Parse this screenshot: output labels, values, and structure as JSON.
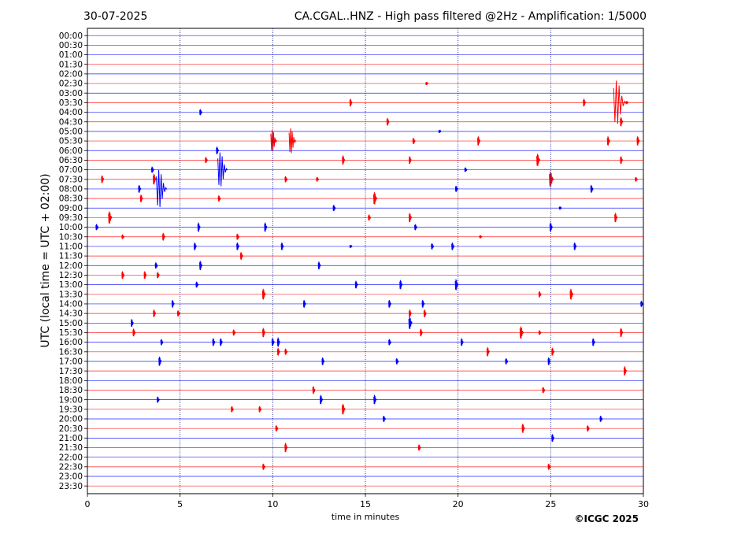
{
  "header": {
    "date": "30-07-2025",
    "title": "CA.CGAL..HNZ - High pass filtered @2Hz - Amplification: 1/5000"
  },
  "footer": {
    "copyright": "©ICGC 2025"
  },
  "chart_data": {
    "type": "line",
    "xlabel": "time in minutes",
    "ylabel": "UTC (local time = UTC + 02:00)",
    "xlim": [
      0,
      30
    ],
    "x_ticks": [
      0,
      5,
      10,
      15,
      20,
      25,
      30
    ],
    "grid": "vertical dotted at every 5 minutes",
    "colors": {
      "odd_trace": "#ff0000",
      "even_trace": "#0000ff",
      "grid": "#000080"
    },
    "rows": [
      "00:00",
      "00:30",
      "01:00",
      "01:30",
      "02:00",
      "02:30",
      "03:00",
      "03:30",
      "04:00",
      "04:30",
      "05:00",
      "05:30",
      "06:00",
      "06:30",
      "07:00",
      "07:30",
      "08:00",
      "08:30",
      "09:00",
      "09:30",
      "10:00",
      "10:30",
      "11:00",
      "11:30",
      "12:00",
      "12:30",
      "13:00",
      "13:30",
      "14:00",
      "14:30",
      "15:00",
      "15:30",
      "16:00",
      "16:30",
      "17:00",
      "17:30",
      "18:00",
      "18:30",
      "19:00",
      "19:30",
      "20:00",
      "20:30",
      "21:00",
      "21:30",
      "22:00",
      "22:30",
      "23:00",
      "23:30"
    ],
    "events": [
      {
        "row": 5,
        "t": 18.3,
        "amp": 2
      },
      {
        "row": 7,
        "t": 14.2,
        "amp": 5
      },
      {
        "row": 7,
        "t": 26.8,
        "amp": 5
      },
      {
        "row": 7,
        "t": 28.6,
        "amp": 28
      },
      {
        "row": 7,
        "t": 29.1,
        "amp": 2
      },
      {
        "row": 8,
        "t": 6.1,
        "amp": 4
      },
      {
        "row": 9,
        "t": 16.2,
        "amp": 5
      },
      {
        "row": 9,
        "t": 28.8,
        "amp": 6
      },
      {
        "row": 10,
        "t": 19.0,
        "amp": 2
      },
      {
        "row": 11,
        "t": 10.0,
        "amp": 14
      },
      {
        "row": 11,
        "t": 11.0,
        "amp": 16
      },
      {
        "row": 11,
        "t": 17.6,
        "amp": 4
      },
      {
        "row": 11,
        "t": 21.1,
        "amp": 6
      },
      {
        "row": 11,
        "t": 28.1,
        "amp": 6
      },
      {
        "row": 11,
        "t": 29.7,
        "amp": 6
      },
      {
        "row": 12,
        "t": 7.0,
        "amp": 5
      },
      {
        "row": 13,
        "t": 6.4,
        "amp": 4
      },
      {
        "row": 13,
        "t": 13.8,
        "amp": 6
      },
      {
        "row": 13,
        "t": 17.4,
        "amp": 5
      },
      {
        "row": 13,
        "t": 24.3,
        "amp": 8
      },
      {
        "row": 13,
        "t": 28.8,
        "amp": 5
      },
      {
        "row": 14,
        "t": 3.5,
        "amp": 4
      },
      {
        "row": 14,
        "t": 7.2,
        "amp": 22
      },
      {
        "row": 14,
        "t": 20.4,
        "amp": 3
      },
      {
        "row": 15,
        "t": 0.8,
        "amp": 5
      },
      {
        "row": 15,
        "t": 3.6,
        "amp": 7
      },
      {
        "row": 15,
        "t": 10.7,
        "amp": 4
      },
      {
        "row": 15,
        "t": 12.4,
        "amp": 3
      },
      {
        "row": 15,
        "t": 25.0,
        "amp": 10
      },
      {
        "row": 15,
        "t": 29.6,
        "amp": 3
      },
      {
        "row": 16,
        "t": 2.8,
        "amp": 5
      },
      {
        "row": 16,
        "t": 3.9,
        "amp": 24
      },
      {
        "row": 16,
        "t": 19.9,
        "amp": 4
      },
      {
        "row": 16,
        "t": 27.2,
        "amp": 5
      },
      {
        "row": 17,
        "t": 2.9,
        "amp": 5
      },
      {
        "row": 17,
        "t": 7.1,
        "amp": 4
      },
      {
        "row": 17,
        "t": 15.5,
        "amp": 8
      },
      {
        "row": 18,
        "t": 13.3,
        "amp": 4
      },
      {
        "row": 18,
        "t": 25.5,
        "amp": 2
      },
      {
        "row": 19,
        "t": 1.2,
        "amp": 8
      },
      {
        "row": 19,
        "t": 15.2,
        "amp": 4
      },
      {
        "row": 19,
        "t": 17.4,
        "amp": 6
      },
      {
        "row": 19,
        "t": 28.5,
        "amp": 6
      },
      {
        "row": 20,
        "t": 0.5,
        "amp": 4
      },
      {
        "row": 20,
        "t": 6.0,
        "amp": 6
      },
      {
        "row": 20,
        "t": 9.6,
        "amp": 6
      },
      {
        "row": 20,
        "t": 17.7,
        "amp": 4
      },
      {
        "row": 20,
        "t": 25.0,
        "amp": 6
      },
      {
        "row": 21,
        "t": 1.9,
        "amp": 3
      },
      {
        "row": 21,
        "t": 4.1,
        "amp": 5
      },
      {
        "row": 21,
        "t": 8.1,
        "amp": 4
      },
      {
        "row": 21,
        "t": 21.2,
        "amp": 2
      },
      {
        "row": 22,
        "t": 5.8,
        "amp": 5
      },
      {
        "row": 22,
        "t": 8.1,
        "amp": 5
      },
      {
        "row": 22,
        "t": 10.5,
        "amp": 5
      },
      {
        "row": 22,
        "t": 14.2,
        "amp": 2
      },
      {
        "row": 22,
        "t": 18.6,
        "amp": 4
      },
      {
        "row": 22,
        "t": 19.7,
        "amp": 5
      },
      {
        "row": 22,
        "t": 26.3,
        "amp": 5
      },
      {
        "row": 23,
        "t": 8.3,
        "amp": 5
      },
      {
        "row": 24,
        "t": 3.7,
        "amp": 4
      },
      {
        "row": 24,
        "t": 6.1,
        "amp": 6
      },
      {
        "row": 24,
        "t": 12.5,
        "amp": 5
      },
      {
        "row": 25,
        "t": 1.9,
        "amp": 5
      },
      {
        "row": 25,
        "t": 3.1,
        "amp": 5
      },
      {
        "row": 25,
        "t": 3.8,
        "amp": 4
      },
      {
        "row": 26,
        "t": 5.9,
        "amp": 4
      },
      {
        "row": 26,
        "t": 14.5,
        "amp": 5
      },
      {
        "row": 26,
        "t": 16.9,
        "amp": 6
      },
      {
        "row": 26,
        "t": 19.9,
        "amp": 7
      },
      {
        "row": 27,
        "t": 9.5,
        "amp": 7
      },
      {
        "row": 27,
        "t": 24.4,
        "amp": 4
      },
      {
        "row": 27,
        "t": 26.1,
        "amp": 7
      },
      {
        "row": 28,
        "t": 4.6,
        "amp": 5
      },
      {
        "row": 28,
        "t": 11.7,
        "amp": 5
      },
      {
        "row": 28,
        "t": 16.3,
        "amp": 5
      },
      {
        "row": 28,
        "t": 18.1,
        "amp": 5
      },
      {
        "row": 28,
        "t": 29.9,
        "amp": 4
      },
      {
        "row": 29,
        "t": 3.6,
        "amp": 5
      },
      {
        "row": 29,
        "t": 4.9,
        "amp": 4
      },
      {
        "row": 29,
        "t": 17.4,
        "amp": 5
      },
      {
        "row": 29,
        "t": 18.2,
        "amp": 5
      },
      {
        "row": 30,
        "t": 2.4,
        "amp": 5
      },
      {
        "row": 30,
        "t": 17.4,
        "amp": 8
      },
      {
        "row": 31,
        "t": 2.5,
        "amp": 5
      },
      {
        "row": 31,
        "t": 7.9,
        "amp": 4
      },
      {
        "row": 31,
        "t": 9.5,
        "amp": 6
      },
      {
        "row": 31,
        "t": 18.0,
        "amp": 5
      },
      {
        "row": 31,
        "t": 23.4,
        "amp": 8
      },
      {
        "row": 31,
        "t": 24.4,
        "amp": 3
      },
      {
        "row": 31,
        "t": 28.8,
        "amp": 6
      },
      {
        "row": 32,
        "t": 4.0,
        "amp": 4
      },
      {
        "row": 32,
        "t": 6.8,
        "amp": 5
      },
      {
        "row": 32,
        "t": 7.2,
        "amp": 5
      },
      {
        "row": 32,
        "t": 10.0,
        "amp": 5
      },
      {
        "row": 32,
        "t": 10.3,
        "amp": 6
      },
      {
        "row": 32,
        "t": 16.3,
        "amp": 4
      },
      {
        "row": 32,
        "t": 20.2,
        "amp": 5
      },
      {
        "row": 32,
        "t": 27.3,
        "amp": 5
      },
      {
        "row": 33,
        "t": 10.3,
        "amp": 5
      },
      {
        "row": 33,
        "t": 10.7,
        "amp": 4
      },
      {
        "row": 33,
        "t": 21.6,
        "amp": 6
      },
      {
        "row": 33,
        "t": 25.1,
        "amp": 5
      },
      {
        "row": 34,
        "t": 3.9,
        "amp": 6
      },
      {
        "row": 34,
        "t": 12.7,
        "amp": 5
      },
      {
        "row": 34,
        "t": 16.7,
        "amp": 4
      },
      {
        "row": 34,
        "t": 22.6,
        "amp": 4
      },
      {
        "row": 34,
        "t": 24.9,
        "amp": 5
      },
      {
        "row": 35,
        "t": 29.0,
        "amp": 6
      },
      {
        "row": 37,
        "t": 12.2,
        "amp": 5
      },
      {
        "row": 37,
        "t": 24.6,
        "amp": 4
      },
      {
        "row": 38,
        "t": 3.8,
        "amp": 4
      },
      {
        "row": 38,
        "t": 12.6,
        "amp": 6
      },
      {
        "row": 38,
        "t": 15.5,
        "amp": 6
      },
      {
        "row": 39,
        "t": 7.8,
        "amp": 4
      },
      {
        "row": 39,
        "t": 9.3,
        "amp": 4
      },
      {
        "row": 39,
        "t": 13.8,
        "amp": 7
      },
      {
        "row": 40,
        "t": 16.0,
        "amp": 4
      },
      {
        "row": 40,
        "t": 27.7,
        "amp": 4
      },
      {
        "row": 41,
        "t": 10.2,
        "amp": 4
      },
      {
        "row": 41,
        "t": 23.5,
        "amp": 6
      },
      {
        "row": 41,
        "t": 27.0,
        "amp": 4
      },
      {
        "row": 42,
        "t": 25.1,
        "amp": 5
      },
      {
        "row": 43,
        "t": 10.7,
        "amp": 6
      },
      {
        "row": 43,
        "t": 17.9,
        "amp": 4
      },
      {
        "row": 45,
        "t": 9.5,
        "amp": 4
      },
      {
        "row": 45,
        "t": 24.9,
        "amp": 4
      }
    ]
  }
}
